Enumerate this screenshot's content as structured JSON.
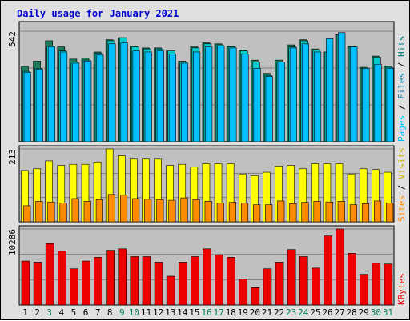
{
  "chart_data": {
    "type": "bar",
    "title": "Daily usage for January 2021",
    "colors": {
      "title": "#0000cc",
      "hits": "#00cccc",
      "files": "#1a7a5a",
      "pages": "#00bfff",
      "sites": "#ffff00",
      "visits": "#ff8c00",
      "kbytes": "#ee0000",
      "weekday": "#000000",
      "weekend": "#008050",
      "legend_hits": "#007a7a",
      "legend_files": "#0070a0",
      "legend_pages": "#00bfff",
      "legend_sites": "#ff8c00",
      "legend_visits": "#c8b400",
      "legend_kbytes": "#ee0000"
    },
    "categories": [
      "1",
      "2",
      "3",
      "4",
      "5",
      "6",
      "7",
      "8",
      "9",
      "10",
      "11",
      "12",
      "13",
      "14",
      "15",
      "16",
      "17",
      "18",
      "19",
      "20",
      "21",
      "22",
      "23",
      "24",
      "25",
      "26",
      "27",
      "28",
      "29",
      "30",
      "31"
    ],
    "weekend_days": [
      "3",
      "9",
      "10",
      "16",
      "17",
      "23",
      "24",
      "30",
      "31"
    ],
    "panels": [
      {
        "id": "usage",
        "max_label": "542",
        "ylim": [
          0,
          542
        ],
        "legend": [
          "Pages",
          "Files",
          "Hits"
        ],
        "series": [
          {
            "name": "Files",
            "values": [
              370,
              395,
              495,
              465,
              405,
              410,
              440,
              500,
              510,
              470,
              460,
              460,
              445,
              395,
              465,
              485,
              480,
              470,
              450,
              400,
              335,
              400,
              475,
              500,
              455,
              440,
              525,
              470,
              365,
              420,
              370
            ]
          },
          {
            "name": "Hits",
            "values": [
              345,
              360,
              470,
              445,
              390,
              400,
              435,
              495,
              510,
              465,
              455,
              455,
              445,
              390,
              460,
              480,
              475,
              465,
              445,
              390,
              325,
              390,
              465,
              495,
              450,
              440,
              525,
              465,
              360,
              415,
              365
            ]
          },
          {
            "name": "Pages",
            "values": [
              340,
              355,
              465,
              440,
              385,
              395,
              425,
              480,
              485,
              445,
              440,
              445,
              430,
              385,
              440,
              465,
              470,
              460,
              430,
              360,
              320,
              390,
              460,
              480,
              440,
              505,
              535,
              465,
              360,
              380,
              360
            ]
          }
        ]
      },
      {
        "id": "visits",
        "max_label": "213",
        "ylim": [
          0,
          213
        ],
        "legend": [
          "Sites",
          "Visits"
        ],
        "series": [
          {
            "name": "Sites",
            "values": [
              150,
              155,
              178,
              165,
              168,
              168,
              175,
              213,
              193,
              183,
              183,
              183,
              165,
              168,
              160,
              170,
              170,
              170,
              140,
              135,
              145,
              163,
              165,
              155,
              170,
              170,
              170,
              140,
              155,
              153,
              145
            ]
          },
          {
            "name": "Visits",
            "values": [
              47,
              60,
              58,
              55,
              68,
              60,
              65,
              80,
              78,
              68,
              66,
              65,
              63,
              70,
              65,
              60,
              55,
              57,
              55,
              50,
              50,
              61,
              53,
              57,
              60,
              58,
              60,
              50,
              53,
              61,
              55
            ]
          }
        ]
      },
      {
        "id": "kbytes",
        "max_label": "10286",
        "ylim": [
          0,
          10286
        ],
        "legend": [
          "KBytes"
        ],
        "series": [
          {
            "name": "KBytes",
            "values": [
              5950,
              5800,
              8300,
              7300,
              4900,
              5950,
              6450,
              7400,
              7600,
              6550,
              6550,
              5800,
              3900,
              5800,
              6550,
              7600,
              6800,
              6450,
              3500,
              2350,
              4900,
              5800,
              7500,
              6550,
              5000,
              9350,
              10286,
              7000,
              4150,
              5700,
              5550
            ]
          }
        ]
      }
    ]
  }
}
